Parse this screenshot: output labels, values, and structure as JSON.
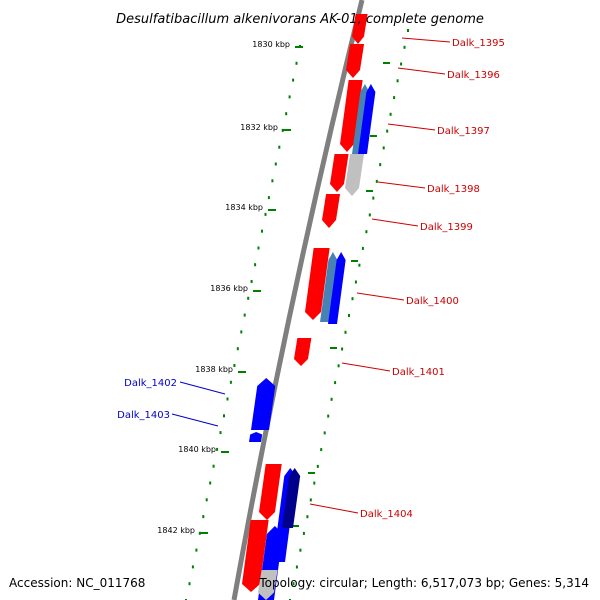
{
  "title": "Desulfatibacillum alkenivorans AK-01, complete genome",
  "footer": {
    "accession": "Accession: NC_011768",
    "summary": "Topology: circular; Length: 6,517,073 bp; Genes: 5,314"
  },
  "colors": {
    "backbone": "#7f7f7f",
    "tick": "#008000",
    "forward_gene": "#ff0000",
    "reverse_gene": "#0000ff",
    "reverse_gene_alt": "#4682b4",
    "reverse_gene_dark": "#00008b",
    "pseudo_gene": "#c0c0c0",
    "forward_label": "#cc0000",
    "reverse_label": "#0000cc"
  },
  "scale_labels": [
    "1830 kbp",
    "1832 kbp",
    "1834 kbp",
    "1836 kbp",
    "1838 kbp",
    "1840 kbp",
    "1842 kbp"
  ],
  "genes": [
    {
      "label": "Dalk_1395",
      "strand": "forward"
    },
    {
      "label": "Dalk_1396",
      "strand": "forward"
    },
    {
      "label": "Dalk_1397",
      "strand": "forward"
    },
    {
      "label": "Dalk_1398",
      "strand": "forward"
    },
    {
      "label": "Dalk_1399",
      "strand": "forward"
    },
    {
      "label": "Dalk_1400",
      "strand": "forward"
    },
    {
      "label": "Dalk_1401",
      "strand": "forward"
    },
    {
      "label": "Dalk_1402",
      "strand": "reverse"
    },
    {
      "label": "Dalk_1403",
      "strand": "reverse"
    },
    {
      "label": "Dalk_1404",
      "strand": "forward"
    }
  ]
}
